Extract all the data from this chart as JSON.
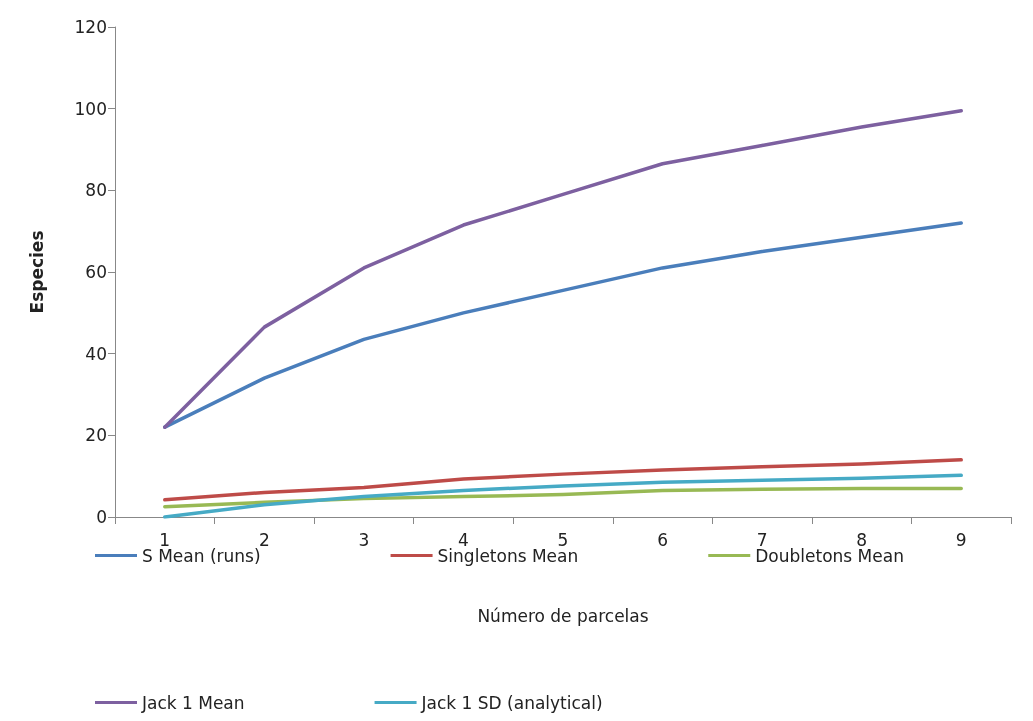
{
  "chart_data": {
    "type": "line",
    "xlabel": "Número de parcelas",
    "ylabel": "Especies",
    "categories": [
      "1",
      "2",
      "3",
      "4",
      "5",
      "6",
      "7",
      "8",
      "9"
    ],
    "series": [
      {
        "name": "S Mean (runs)",
        "color": "#4a7ebb",
        "values": [
          22,
          34,
          43.5,
          50,
          55.5,
          61,
          65,
          68.5,
          72
        ]
      },
      {
        "name": "Singletons Mean",
        "color": "#be4b48",
        "values": [
          4.2,
          6,
          7.2,
          9.3,
          10.5,
          11.5,
          12.3,
          13,
          14
        ]
      },
      {
        "name": "Doubletons Mean",
        "color": "#98b954",
        "values": [
          2.5,
          3.6,
          4.5,
          5,
          5.5,
          6.5,
          6.8,
          7,
          7
        ]
      },
      {
        "name": "Jack 1 Mean",
        "color": "#7d60a0",
        "values": [
          22,
          46.5,
          61,
          71.5,
          79,
          86.5,
          91,
          95.5,
          99.5
        ]
      },
      {
        "name": "Jack 1 SD (analytical)",
        "color": "#46aac5",
        "values": [
          0,
          3,
          5,
          6.5,
          7.6,
          8.5,
          9,
          9.5,
          10.2
        ]
      }
    ],
    "ylim": [
      0,
      120
    ],
    "yticks": [
      0,
      20,
      40,
      60,
      80,
      100,
      120
    ],
    "grid": false,
    "legend": "bottom",
    "marker": "none",
    "line_style": "solid"
  }
}
